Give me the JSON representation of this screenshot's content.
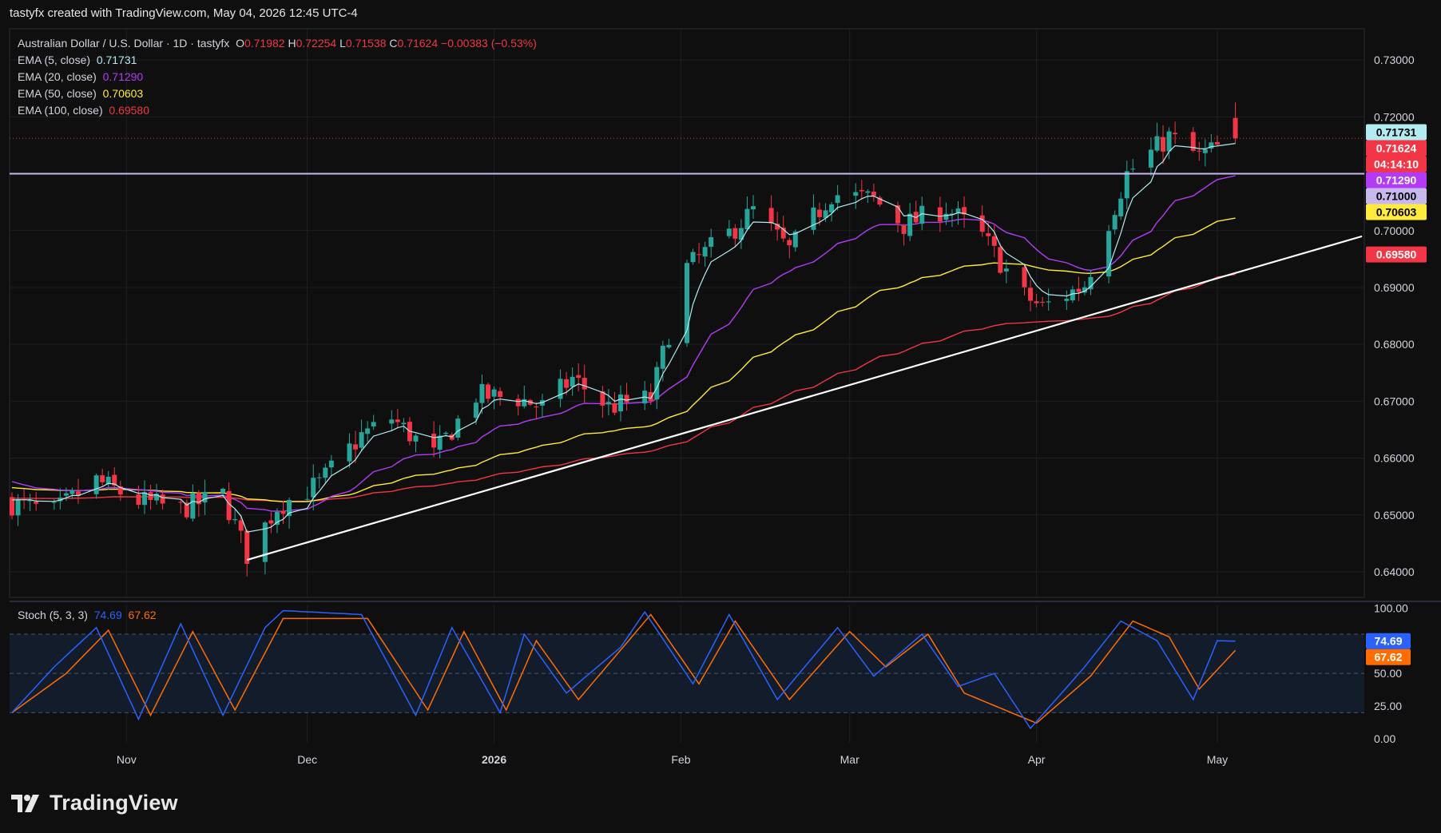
{
  "attribution": "tastyfx created with TradingView.com, May 04, 2026 12:45 UTC-4",
  "brand": "TradingView",
  "main_legend": {
    "title": "Australian Dollar / U.S. Dollar · 1D · tastyfx",
    "o_label": "O",
    "o_value": "0.71982",
    "h_label": "H",
    "h_value": "0.72254",
    "l_label": "L",
    "l_value": "0.71538",
    "c_label": "C",
    "c_value": "0.71624",
    "change": "−0.00383 (−0.53%)"
  },
  "ema_legend": [
    {
      "label": "EMA (5, close)",
      "value": "0.71731",
      "color": "#b2ebf2"
    },
    {
      "label": "EMA (20, close)",
      "value": "0.71290",
      "color": "#b33bf6"
    },
    {
      "label": "EMA (50, close)",
      "value": "0.70603",
      "color": "#ffeb3b"
    },
    {
      "label": "EMA (100, close)",
      "value": "0.69580",
      "color": "#f23645"
    }
  ],
  "stoch_legend": {
    "label": "Stoch (5, 3, 3)",
    "k": "74.69",
    "d": "67.62",
    "k_color": "#2962ff",
    "d_color": "#ff6d00"
  },
  "price_axis": {
    "ticks": [
      "0.73000",
      "0.72000",
      "0.71000",
      "0.70000",
      "0.69000",
      "0.68000",
      "0.67000",
      "0.66000",
      "0.65000",
      "0.64000"
    ],
    "tags": [
      {
        "text": "0.71731",
        "bg": "#b2ebf2",
        "fg": "#000000"
      },
      {
        "text": "0.71624",
        "bg": "#f23645",
        "fg": "#ffffff"
      },
      {
        "text": "04:14:10",
        "bg": "#f23645",
        "fg": "#ffffff"
      },
      {
        "text": "0.71290",
        "bg": "#b33bf6",
        "fg": "#ffffff"
      },
      {
        "text": "0.71000",
        "bg": "#c7b8ee",
        "fg": "#000000"
      },
      {
        "text": "0.70603",
        "bg": "#ffeb3b",
        "fg": "#000000"
      },
      {
        "text": "0.69580",
        "bg": "#f23645",
        "fg": "#ffffff"
      }
    ]
  },
  "stoch_axis": {
    "ticks": [
      "100.00",
      "50.00",
      "25.00",
      "0.00"
    ],
    "tags": [
      {
        "text": "74.69",
        "bg": "#2962ff",
        "fg": "#ffffff"
      },
      {
        "text": "67.62",
        "bg": "#ff6d00",
        "fg": "#ffffff"
      }
    ]
  },
  "time_axis": [
    "Nov",
    "Dec",
    "2026",
    "Feb",
    "Mar",
    "Apr",
    "May"
  ],
  "chart_data": {
    "type": "candlestick",
    "title": "Australian Dollar / U.S. Dollar · 1D · tastyfx",
    "ylim": [
      0.6355,
      0.7355
    ],
    "colors": {
      "up": "#26a69a",
      "down": "#f23645"
    },
    "anchors": [
      [
        "2025-10-13",
        0.652
      ],
      [
        "2025-10-20",
        0.6505
      ],
      [
        "2025-10-27",
        0.656
      ],
      [
        "2025-11-03",
        0.6525
      ],
      [
        "2025-11-10",
        0.651
      ],
      [
        "2025-11-17",
        0.6535
      ],
      [
        "2025-11-21",
        0.643
      ],
      [
        "2025-11-26",
        0.6515
      ],
      [
        "2025-12-03",
        0.6555
      ],
      [
        "2025-12-10",
        0.664
      ],
      [
        "2025-12-15",
        0.667
      ],
      [
        "2025-12-22",
        0.6605
      ],
      [
        "2025-12-29",
        0.671
      ],
      [
        "2026-01-05",
        0.6705
      ],
      [
        "2026-01-09",
        0.669
      ],
      [
        "2026-01-14",
        0.674
      ],
      [
        "2026-01-20",
        0.669
      ],
      [
        "2026-01-27",
        0.6705
      ],
      [
        "2026-02-02",
        0.6935
      ],
      [
        "2026-02-09",
        0.6995
      ],
      [
        "2026-02-13",
        0.7035
      ],
      [
        "2026-02-19",
        0.6965
      ],
      [
        "2026-02-26",
        0.7065
      ],
      [
        "2026-03-05",
        0.7055
      ],
      [
        "2026-03-10",
        0.701
      ],
      [
        "2026-03-17",
        0.704
      ],
      [
        "2026-03-23",
        0.699
      ],
      [
        "2026-03-30",
        0.6885
      ],
      [
        "2026-04-02",
        0.6865
      ],
      [
        "2026-04-09",
        0.6905
      ],
      [
        "2026-04-16",
        0.71
      ],
      [
        "2026-04-23",
        0.7165
      ],
      [
        "2026-04-28",
        0.713
      ],
      [
        "2026-05-04",
        0.7162
      ]
    ],
    "last_candle": {
      "open": 0.71982,
      "high": 0.72254,
      "low": 0.71538,
      "close": 0.71624
    },
    "ema": [
      {
        "name": "EMA (5, close)",
        "period": 5,
        "last": 0.71731,
        "color": "#b2ebf2"
      },
      {
        "name": "EMA (20, close)",
        "period": 20,
        "last": 0.7129,
        "color": "#b33bf6"
      },
      {
        "name": "EMA (50, close)",
        "period": 50,
        "last": 0.70603,
        "color": "#ffeb3b"
      },
      {
        "name": "EMA (100, close)",
        "period": 100,
        "last": 0.6958,
        "color": "#f23645"
      }
    ],
    "horizontal_line": {
      "price": 0.71,
      "color": "#c7b8ee"
    },
    "trendline": {
      "start": [
        "2025-11-21",
        0.6421
      ],
      "end": [
        "2026-05-25",
        0.699
      ],
      "color": "#ffffff"
    },
    "stochastic": {
      "name": "Stoch (5, 3, 3)",
      "ylim": [
        -3,
        102
      ],
      "levels": [
        20,
        50,
        80
      ],
      "k_last": 74.69,
      "d_last": 67.62,
      "k_anchors": [
        [
          "2025-10-13",
          20
        ],
        [
          "2025-10-20",
          55
        ],
        [
          "2025-10-27",
          85
        ],
        [
          "2025-11-03",
          15
        ],
        [
          "2025-11-10",
          88
        ],
        [
          "2025-11-17",
          18
        ],
        [
          "2025-11-24",
          85
        ],
        [
          "2025-11-27",
          98
        ],
        [
          "2025-12-10",
          95
        ],
        [
          "2025-12-19",
          18
        ],
        [
          "2025-12-25",
          85
        ],
        [
          "2026-01-02",
          20
        ],
        [
          "2026-01-06",
          80
        ],
        [
          "2026-01-13",
          35
        ],
        [
          "2026-01-22",
          70
        ],
        [
          "2026-01-26",
          97
        ],
        [
          "2026-02-03",
          42
        ],
        [
          "2026-02-09",
          95
        ],
        [
          "2026-02-17",
          30
        ],
        [
          "2026-02-27",
          85
        ],
        [
          "2026-03-05",
          48
        ],
        [
          "2026-03-13",
          80
        ],
        [
          "2026-03-19",
          40
        ],
        [
          "2026-03-25",
          50
        ],
        [
          "2026-03-31",
          8
        ],
        [
          "2026-04-09",
          55
        ],
        [
          "2026-04-15",
          90
        ],
        [
          "2026-04-21",
          75
        ],
        [
          "2026-04-27",
          30
        ],
        [
          "2026-05-01",
          75
        ],
        [
          "2026-05-04",
          74.69
        ]
      ],
      "d_anchors": [
        [
          "2025-10-13",
          20
        ],
        [
          "2025-10-22",
          50
        ],
        [
          "2025-10-29",
          83
        ],
        [
          "2025-11-05",
          18
        ],
        [
          "2025-11-12",
          82
        ],
        [
          "2025-11-19",
          22
        ],
        [
          "2025-11-27",
          92
        ],
        [
          "2025-12-11",
          92
        ],
        [
          "2025-12-21",
          22
        ],
        [
          "2025-12-27",
          82
        ],
        [
          "2026-01-03",
          22
        ],
        [
          "2026-01-08",
          75
        ],
        [
          "2026-01-15",
          30
        ],
        [
          "2026-01-27",
          95
        ],
        [
          "2026-02-04",
          42
        ],
        [
          "2026-02-10",
          90
        ],
        [
          "2026-02-19",
          30
        ],
        [
          "2026-03-01",
          82
        ],
        [
          "2026-03-07",
          55
        ],
        [
          "2026-03-14",
          80
        ],
        [
          "2026-03-20",
          35
        ],
        [
          "2026-04-01",
          12
        ],
        [
          "2026-04-10",
          48
        ],
        [
          "2026-04-17",
          90
        ],
        [
          "2026-04-23",
          78
        ],
        [
          "2026-04-28",
          38
        ],
        [
          "2026-05-04",
          67.62
        ]
      ]
    }
  }
}
